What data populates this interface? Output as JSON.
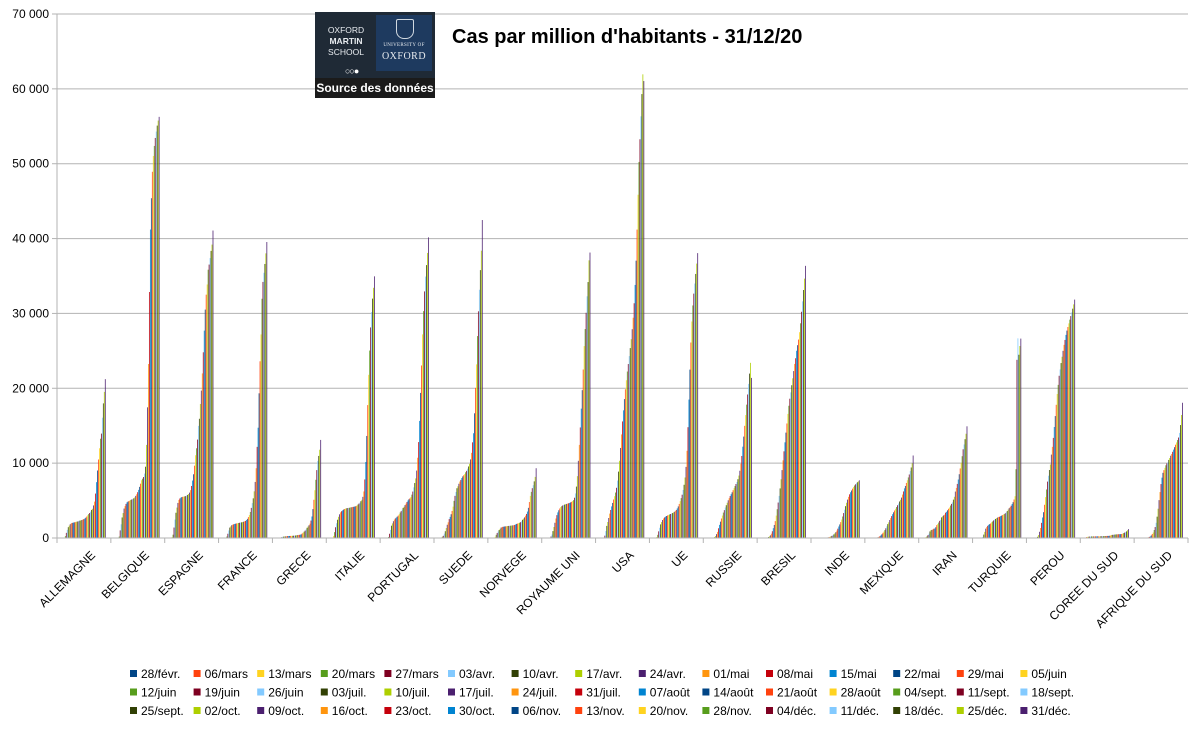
{
  "chart_data": {
    "type": "bar",
    "title": "Cas par million d'habitants - 31/12/20",
    "source_label": "Source des données",
    "logo": {
      "school_lines": [
        "OXFORD",
        "MARTIN",
        "SCHOOL"
      ],
      "university_small": "UNIVERSITY OF",
      "university_big": "OXFORD"
    },
    "xlabel": "",
    "ylabel": "",
    "ylim": [
      0,
      70000
    ],
    "yticks": [
      {
        "value": 0,
        "label": "0"
      },
      {
        "value": 10000,
        "label": "10 000"
      },
      {
        "value": 20000,
        "label": "20 000"
      },
      {
        "value": 30000,
        "label": "30 000"
      },
      {
        "value": 40000,
        "label": "40 000"
      },
      {
        "value": 50000,
        "label": "50 000"
      },
      {
        "value": 60000,
        "label": "60 000"
      },
      {
        "value": 70000,
        "label": "70 000"
      }
    ],
    "grid": true,
    "legend_position": "bottom",
    "palette": [
      "#004586",
      "#ff420e",
      "#ffd320",
      "#579d1c",
      "#7e0021",
      "#83caff",
      "#314004",
      "#aecf00",
      "#4b1f6f",
      "#ff950e",
      "#c5000b",
      "#0084d1"
    ],
    "series_names": [
      "28/févr.",
      "06/mars",
      "13/mars",
      "20/mars",
      "27/mars",
      "03/avr.",
      "10/avr.",
      "17/avr.",
      "24/avr.",
      "01/mai",
      "08/mai",
      "15/mai",
      "22/mai",
      "29/mai",
      "05/juin",
      "12/juin",
      "19/juin",
      "26/juin",
      "03/juil.",
      "10/juil.",
      "17/juil.",
      "24/juil.",
      "31/juil.",
      "07/août",
      "14/août",
      "21/août",
      "28/août",
      "04/sept.",
      "11/sept.",
      "18/sept.",
      "25/sept.",
      "02/oct.",
      "09/oct.",
      "16/oct.",
      "23/oct.",
      "30/oct.",
      "06/nov.",
      "13/nov.",
      "20/nov.",
      "28/nov.",
      "04/déc.",
      "11/déc.",
      "18/déc.",
      "25/déc.",
      "31/déc."
    ],
    "categories": [
      "ALLEMAGNE",
      "BELGIQUE",
      "ESPAGNE",
      "FRANCE",
      "GRECE",
      "ITALIE",
      "PORTUGAL",
      "SUEDE",
      "NORVEGE",
      "ROYAUME UNI",
      "USA",
      "UE",
      "RUSSIE",
      "BRESIL",
      "INDE",
      "MEXIQUE",
      "IRAN",
      "TURQUIE",
      "PEROU",
      "COREE DU SUD",
      "AFRIQUE DU SUD"
    ],
    "values_by_category": {
      "ALLEMAGNE": [
        1,
        7,
        45,
        254,
        688,
        1088,
        1446,
        1662,
        1849,
        1961,
        2014,
        2055,
        2083,
        2122,
        2159,
        2189,
        2217,
        2288,
        2325,
        2360,
        2407,
        2472,
        2525,
        2600,
        2709,
        2863,
        3036,
        3197,
        3337,
        3520,
        3752,
        3905,
        4350,
        4862,
        5936,
        7461,
        9016,
        10488,
        11990,
        13264,
        13947,
        16070,
        17984,
        19520,
        21219
      ],
      "BELGIQUE": [
        0,
        15,
        48,
        188,
        1018,
        1830,
        2744,
        3335,
        3932,
        4258,
        4551,
        4760,
        4857,
        4947,
        5024,
        5090,
        5156,
        5216,
        5302,
        5419,
        5628,
        5844,
        6121,
        6431,
        6831,
        7255,
        7717,
        7924,
        8143,
        8604,
        9522,
        12439,
        17456,
        23245,
        32862,
        41207,
        45391,
        48923,
        51034,
        52375,
        53441,
        54297,
        55092,
        55764,
        56260
      ],
      "ESPAGNE": [
        1,
        9,
        110,
        443,
        1398,
        2461,
        3374,
        4065,
        4685,
        5085,
        5275,
        5388,
        5465,
        5503,
        5533,
        5563,
        5596,
        5674,
        5756,
        5878,
        6062,
        6396,
        6952,
        7676,
        8513,
        9661,
        11056,
        11983,
        13149,
        14978,
        15926,
        17907,
        19690,
        21987,
        24808,
        27701,
        30511,
        32506,
        33868,
        35841,
        36526,
        37394,
        38353,
        39195,
        41074
      ],
      "FRANCE": [
        1,
        7,
        54,
        203,
        566,
        1007,
        1391,
        1551,
        1712,
        1784,
        1832,
        1878,
        1913,
        1946,
        1975,
        2006,
        2033,
        2065,
        2095,
        2130,
        2172,
        2224,
        2286,
        2402,
        2556,
        2794,
        3074,
        3480,
        4023,
        4663,
        5297,
        6235,
        7488,
        9319,
        12175,
        14733,
        19328,
        23605,
        27193,
        31961,
        34209,
        35429,
        36609,
        38025,
        39538
      ],
      "GRECE": [
        1,
        7,
        19,
        47,
        103,
        162,
        184,
        207,
        214,
        241,
        251,
        263,
        271,
        278,
        284,
        295,
        307,
        318,
        337,
        362,
        383,
        405,
        419,
        451,
        490,
        617,
        739,
        859,
        993,
        1148,
        1363,
        1538,
        1705,
        1916,
        2329,
        2875,
        3862,
        5106,
        6381,
        7775,
        9070,
        10306,
        10963,
        11792,
        13101
      ],
      "ITALIE": [
        13,
        57,
        280,
        783,
        1436,
        1974,
        2436,
        2834,
        3165,
        3425,
        3578,
        3684,
        3793,
        3871,
        3929,
        3970,
        3997,
        4012,
        4038,
        4072,
        4102,
        4128,
        4158,
        4184,
        4219,
        4270,
        4362,
        4478,
        4599,
        4725,
        4919,
        5100,
        5499,
        6218,
        7823,
        10155,
        13632,
        17755,
        21800,
        25040,
        28131,
        30187,
        31980,
        33424,
        34955
      ],
      "PORTUGAL": [
        0,
        4,
        28,
        139,
        567,
        1081,
        1640,
        1954,
        2243,
        2469,
        2626,
        2747,
        2865,
        3000,
        3178,
        3415,
        3588,
        3782,
        4022,
        4175,
        4398,
        4591,
        4809,
        5014,
        5176,
        5304,
        5476,
        5792,
        6203,
        6765,
        7344,
        7961,
        9006,
        10724,
        12812,
        15642,
        19384,
        23047,
        27200,
        30311,
        32941,
        34925,
        36457,
        38082,
        40160
      ],
      "SUEDE": [
        1,
        12,
        84,
        184,
        296,
        583,
        904,
        1331,
        1768,
        2097,
        2526,
        2820,
        3176,
        3616,
        4191,
        4960,
        5630,
        6149,
        6647,
        6911,
        7245,
        7541,
        7761,
        8016,
        8231,
        8387,
        8552,
        8784,
        8973,
        9263,
        9557,
        9909,
        10499,
        11375,
        12779,
        13995,
        16659,
        20056,
        23197,
        26978,
        30284,
        33162,
        35787,
        38380,
        42476
      ],
      "NORVEGE": [
        4,
        28,
        168,
        429,
        673,
        865,
        1065,
        1222,
        1390,
        1455,
        1497,
        1523,
        1549,
        1564,
        1581,
        1601,
        1616,
        1631,
        1648,
        1669,
        1687,
        1705,
        1746,
        1811,
        1884,
        1925,
        1986,
        2039,
        2109,
        2227,
        2437,
        2592,
        2753,
        2982,
        3216,
        3536,
        4030,
        4805,
        5624,
        6164,
        6655,
        7052,
        7565,
        8163,
        9322
      ],
      "ROYAUME UNI": [
        0,
        3,
        12,
        52,
        202,
        466,
        922,
        1468,
        2035,
        2605,
        3053,
        3422,
        3706,
        3941,
        4138,
        4245,
        4342,
        4407,
        4462,
        4508,
        4552,
        4597,
        4639,
        4688,
        4754,
        4831,
        4936,
        5058,
        5381,
        5953,
        6868,
        8264,
        10312,
        12440,
        14768,
        17280,
        19748,
        22507,
        25636,
        27913,
        30084,
        32286,
        34190,
        37092,
        38134
      ],
      "USA": [
        0,
        1,
        6,
        62,
        312,
        928,
        1616,
        2138,
        2673,
        3258,
        3745,
        4224,
        4683,
        5145,
        5585,
        6076,
        6709,
        7669,
        8869,
        10316,
        12030,
        13836,
        15572,
        17053,
        18557,
        19868,
        21071,
        22238,
        23240,
        24303,
        25370,
        26557,
        27890,
        29427,
        31357,
        33806,
        37047,
        41202,
        45855,
        50237,
        53267,
        56328,
        59302,
        61940,
        61043
      ],
      "UE": [
        3,
        25,
        132,
        423,
        888,
        1361,
        1818,
        2134,
        2400,
        2608,
        2749,
        2855,
        2939,
        3015,
        3087,
        3146,
        3203,
        3264,
        3331,
        3412,
        3502,
        3614,
        3753,
        3960,
        4220,
        4548,
        4920,
        5328,
        5785,
        6419,
        7109,
        8086,
        9501,
        11650,
        14802,
        18493,
        22495,
        26116,
        28922,
        31066,
        32646,
        33994,
        35273,
        36658,
        38058
      ],
      "RUSSIE": [
        0,
        0,
        1,
        2,
        9,
        30,
        103,
        265,
        514,
        818,
        1297,
        1756,
        2186,
        2602,
        2999,
        3394,
        3720,
        4079,
        4380,
        4712,
        5039,
        5321,
        5604,
        5850,
        6106,
        6385,
        6663,
        6938,
        7214,
        7484,
        7853,
        8340,
        8985,
        9917,
        10958,
        12199,
        13547,
        14982,
        16420,
        17815,
        19171,
        20586,
        21963,
        23400,
        21389
      ],
      "BRESIL": [
        0,
        0,
        0,
        2,
        12,
        56,
        126,
        218,
        357,
        579,
        905,
        1315,
        1742,
        2253,
        2992,
        3845,
        4736,
        5624,
        6624,
        7844,
        9072,
        10372,
        11579,
        12782,
        14076,
        15299,
        16580,
        17665,
        18608,
        19455,
        20407,
        21337,
        22300,
        23255,
        24012,
        25016,
        25757,
        26510,
        27494,
        28680,
        30222,
        31614,
        33130,
        34650,
        36355
      ],
      "INDE": [
        0,
        0,
        0,
        0,
        1,
        2,
        5,
        10,
        18,
        28,
        42,
        57,
        82,
        115,
        161,
        221,
        291,
        384,
        489,
        632,
        787,
        996,
        1247,
        1537,
        1813,
        2121,
        2465,
        2871,
        3330,
        3778,
        4253,
        4712,
        5130,
        5502,
        5835,
        6109,
        6350,
        6592,
        6824,
        7019,
        7172,
        7316,
        7449,
        7566,
        7708
      ],
      "MEXIQUE": [
        0,
        0,
        0,
        1,
        5,
        9,
        23,
        49,
        99,
        162,
        253,
        373,
        510,
        690,
        863,
        1062,
        1299,
        1558,
        1855,
        2095,
        2402,
        2658,
        2927,
        3183,
        3435,
        3674,
        3910,
        4135,
        4377,
        4605,
        4880,
        5104,
        5398,
        5807,
        6218,
        6635,
        6952,
        7356,
        7715,
        8093,
        8486,
        8942,
        9418,
        9987,
        11021
      ],
      "IRAN": [
        1,
        45,
        131,
        236,
        395,
        579,
        879,
        1055,
        1083,
        1155,
        1241,
        1270,
        1438,
        1717,
        1863,
        2064,
        2290,
        2420,
        2750,
        2890,
        3016,
        3120,
        3380,
        3502,
        3700,
        3905,
        4080,
        4336,
        4560,
        4764,
        5123,
        5509,
        6202,
        6691,
        7226,
        7812,
        8519,
        9294,
        10043,
        10925,
        11850,
        12496,
        13198,
        13926,
        14921
      ],
      "TURQUIE": [
        0,
        0,
        0,
        3,
        27,
        143,
        455,
        822,
        1249,
        1454,
        1628,
        1764,
        1847,
        1934,
        2095,
        2208,
        2350,
        2455,
        2551,
        2651,
        2729,
        2818,
        2837,
        2915,
        2985,
        3053,
        3141,
        3198,
        3310,
        3442,
        3600,
        3806,
        3990,
        4136,
        4313,
        4536,
        4786,
        5142,
        5578,
        9187,
        23803,
        26669,
        24480,
        25650,
        26638
      ],
      "PEROU": [
        0,
        0,
        1,
        4,
        16,
        40,
        162,
        400,
        829,
        1337,
        2022,
        2741,
        3448,
        4436,
        5463,
        6483,
        7536,
        8318,
        9082,
        9821,
        11143,
        12178,
        13371,
        14830,
        16289,
        17792,
        19238,
        20458,
        21671,
        22519,
        23370,
        24216,
        25004,
        25802,
        26459,
        27133,
        27703,
        28188,
        28673,
        29169,
        29644,
        30141,
        30637,
        31212,
        31848
      ],
      "COREE DU SUD": [
        46,
        123,
        155,
        170,
        186,
        197,
        203,
        207,
        210,
        210,
        211,
        214,
        217,
        220,
        227,
        232,
        238,
        244,
        249,
        259,
        264,
        270,
        278,
        281,
        289,
        318,
        374,
        411,
        427,
        443,
        459,
        479,
        488,
        498,
        508,
        512,
        521,
        535,
        587,
        656,
        722,
        787,
        883,
        1045,
        1186
      ],
      "AFRIQUE DU SUD": [
        0,
        0,
        0,
        4,
        19,
        26,
        33,
        47,
        68,
        90,
        145,
        221,
        348,
        534,
        736,
        1068,
        1463,
        2031,
        2851,
        3910,
        5059,
        6138,
        7204,
        8062,
        8706,
        9066,
        9373,
        9714,
        9963,
        10100,
        10427,
        10688,
        10992,
        11218,
        11514,
        11809,
        12133,
        12463,
        12770,
        13088,
        13420,
        14035,
        15088,
        16434,
        18065
      ]
    }
  }
}
